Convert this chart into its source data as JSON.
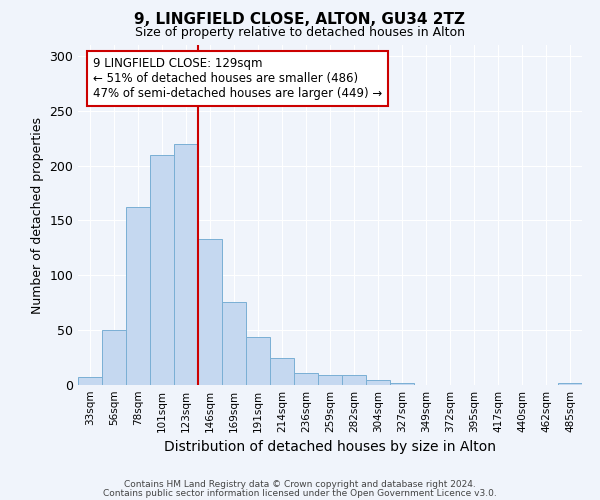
{
  "title": "9, LINGFIELD CLOSE, ALTON, GU34 2TZ",
  "subtitle": "Size of property relative to detached houses in Alton",
  "xlabel": "Distribution of detached houses by size in Alton",
  "ylabel": "Number of detached properties",
  "bar_color": "#c5d8f0",
  "bar_edge_color": "#7aafd4",
  "background_color": "#f0f4fb",
  "plot_bg_color": "#f0f4fb",
  "grid_color": "#ffffff",
  "vline_color": "#cc0000",
  "annotation_text": "9 LINGFIELD CLOSE: 129sqm\n← 51% of detached houses are smaller (486)\n47% of semi-detached houses are larger (449) →",
  "annotation_box_color": "#ffffff",
  "annotation_box_edge": "#cc0000",
  "categories": [
    "33sqm",
    "56sqm",
    "78sqm",
    "101sqm",
    "123sqm",
    "146sqm",
    "169sqm",
    "191sqm",
    "214sqm",
    "236sqm",
    "259sqm",
    "282sqm",
    "304sqm",
    "327sqm",
    "349sqm",
    "372sqm",
    "395sqm",
    "417sqm",
    "440sqm",
    "462sqm",
    "485sqm"
  ],
  "values": [
    7,
    50,
    162,
    210,
    220,
    133,
    76,
    44,
    25,
    11,
    9,
    9,
    5,
    2,
    0,
    0,
    0,
    0,
    0,
    0,
    2
  ],
  "ylim": [
    0,
    310
  ],
  "yticks": [
    0,
    50,
    100,
    150,
    200,
    250,
    300
  ],
  "footer1": "Contains HM Land Registry data © Crown copyright and database right 2024.",
  "footer2": "Contains public sector information licensed under the Open Government Licence v3.0."
}
